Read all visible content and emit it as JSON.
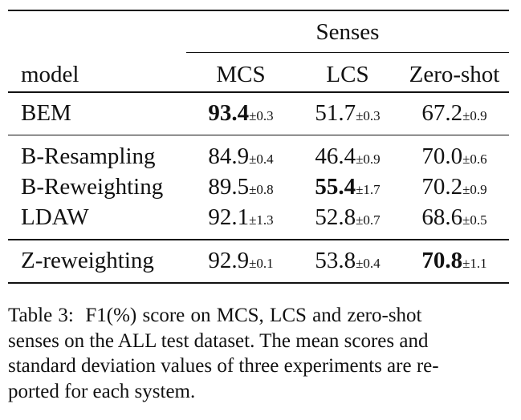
{
  "table": {
    "group_header": "Senses",
    "columns": {
      "model": "model",
      "mcs": "MCS",
      "lcs": "LCS",
      "zero_shot": "Zero-shot"
    },
    "rows": [
      {
        "model": "BEM",
        "mcs": {
          "value": "93.4",
          "std": "±0.3"
        },
        "lcs": {
          "value": "51.7",
          "std": "±0.3"
        },
        "zs": {
          "value": "67.2",
          "std": "±0.9"
        }
      },
      {
        "model": "B-Resampling",
        "mcs": {
          "value": "84.9",
          "std": "±0.4"
        },
        "lcs": {
          "value": "46.4",
          "std": "±0.9"
        },
        "zs": {
          "value": "70.0",
          "std": "±0.6"
        }
      },
      {
        "model": "B-Reweighting",
        "mcs": {
          "value": "89.5",
          "std": "±0.8"
        },
        "lcs": {
          "value": "55.4",
          "std": "±1.7"
        },
        "zs": {
          "value": "70.2",
          "std": "±0.9"
        }
      },
      {
        "model": "LDAW",
        "mcs": {
          "value": "92.1",
          "std": "±1.3"
        },
        "lcs": {
          "value": "52.8",
          "std": "±0.7"
        },
        "zs": {
          "value": "68.6",
          "std": "±0.5"
        }
      },
      {
        "model": "Z-reweighting",
        "mcs": {
          "value": "92.9",
          "std": "±0.1"
        },
        "lcs": {
          "value": "53.8",
          "std": "±0.4"
        },
        "zs": {
          "value": "70.8",
          "std": "±1.1"
        }
      }
    ]
  },
  "caption": {
    "line1": "Table 3:  F1(%) score on MCS, LCS and zero-shot",
    "line2": "senses on the ALL test dataset. The mean scores and",
    "line3": "standard deviation values of three experiments are re-",
    "line4": "ported for each system."
  }
}
